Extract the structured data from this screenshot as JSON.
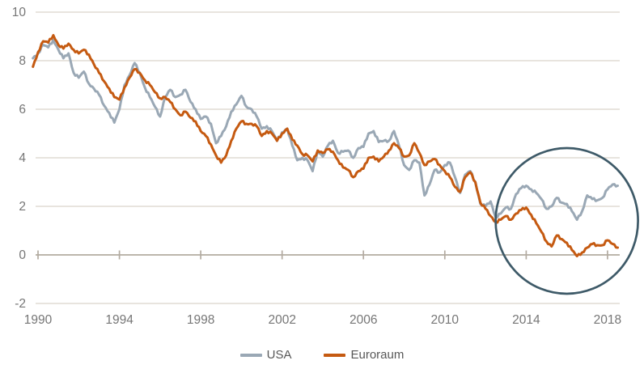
{
  "chart_data": {
    "type": "line",
    "title": "",
    "x_axis": {
      "label": "",
      "ticks": [
        1990,
        1994,
        1998,
        2002,
        2006,
        2010,
        2014,
        2018
      ],
      "range": [
        1989.88,
        2018.6
      ]
    },
    "y_axis": {
      "label": "",
      "ticks": [
        10,
        8,
        6,
        4,
        2,
        0,
        -2
      ],
      "range": [
        -2,
        10
      ]
    },
    "grid": "horizontal",
    "legend_position": "bottom-center",
    "series": [
      {
        "name": "USA",
        "color": "#9aa8b5",
        "x_start": 1989.75,
        "x_step": 0.25,
        "values": [
          8.1,
          8.3,
          8.65,
          8.55,
          8.85,
          8.45,
          8.1,
          8.3,
          7.5,
          7.3,
          7.55,
          7.05,
          6.85,
          6.6,
          6.15,
          5.85,
          5.45,
          6.0,
          7.0,
          7.4,
          7.9,
          7.5,
          6.9,
          6.5,
          6.1,
          5.7,
          6.5,
          6.8,
          6.5,
          6.6,
          6.8,
          6.3,
          6.0,
          5.6,
          5.7,
          5.4,
          4.6,
          4.9,
          5.3,
          5.9,
          6.2,
          6.55,
          6.1,
          6.0,
          5.7,
          5.2,
          5.3,
          5.1,
          4.7,
          5.05,
          5.2,
          4.5,
          3.9,
          4.0,
          3.9,
          3.45,
          4.3,
          4.05,
          4.5,
          4.7,
          4.2,
          4.25,
          4.3,
          4.0,
          4.4,
          4.45,
          5.0,
          5.1,
          4.65,
          4.7,
          4.7,
          5.1,
          4.5,
          3.7,
          3.5,
          3.9,
          3.8,
          2.45,
          2.9,
          3.5,
          3.4,
          3.7,
          3.8,
          3.2,
          2.55,
          3.3,
          3.45,
          3.0,
          2.1,
          2.0,
          2.2,
          1.55,
          1.7,
          1.95,
          1.9,
          2.5,
          2.75,
          2.85,
          2.7,
          2.55,
          2.3,
          1.9,
          2.0,
          2.35,
          2.15,
          2.1,
          1.8,
          1.45,
          1.8,
          2.45,
          2.3,
          2.25,
          2.35,
          2.7,
          2.9,
          2.85
        ]
      },
      {
        "name": "Euroraum",
        "color": "#c55a11",
        "x_start": 1989.75,
        "x_step": 0.25,
        "values": [
          7.75,
          8.35,
          8.8,
          8.75,
          9.05,
          8.65,
          8.5,
          8.7,
          8.45,
          8.3,
          8.45,
          8.25,
          7.85,
          7.5,
          7.15,
          6.85,
          6.5,
          6.4,
          6.9,
          7.3,
          7.65,
          7.5,
          7.2,
          7.0,
          6.7,
          6.45,
          6.5,
          6.3,
          6.0,
          5.75,
          5.9,
          5.65,
          5.5,
          5.1,
          4.9,
          4.55,
          4.1,
          3.8,
          4.1,
          4.7,
          5.2,
          5.5,
          5.4,
          5.4,
          5.3,
          4.9,
          5.1,
          5.0,
          4.7,
          5.0,
          5.2,
          4.75,
          4.5,
          4.15,
          4.1,
          3.85,
          4.3,
          4.2,
          4.35,
          4.25,
          3.9,
          3.6,
          3.5,
          3.2,
          3.45,
          3.55,
          4.0,
          4.05,
          3.85,
          4.05,
          4.3,
          4.6,
          4.4,
          4.05,
          4.1,
          4.6,
          4.2,
          3.7,
          3.85,
          3.95,
          3.7,
          3.45,
          3.2,
          2.8,
          2.6,
          3.2,
          3.4,
          3.0,
          2.15,
          1.9,
          1.6,
          1.35,
          1.45,
          1.6,
          1.45,
          1.7,
          1.85,
          1.95,
          1.65,
          1.3,
          0.95,
          0.55,
          0.35,
          0.8,
          0.65,
          0.5,
          0.2,
          -0.05,
          0.1,
          0.3,
          0.45,
          0.4,
          0.4,
          0.6,
          0.45,
          0.3
        ]
      }
    ],
    "annotation": {
      "shape": "circle",
      "center_year": 2016.0,
      "center_value": 1.4,
      "radius_years": 3.5,
      "radius_values": 3.0,
      "note": "circle highlighting divergence of USA and euro area yields from ~2013 to 2018"
    }
  },
  "colors": {
    "usa_line": "#9aa8b5",
    "euro_line": "#c55a11",
    "gridline": "#d9d3ca",
    "zero_axis": "#b3aba1",
    "tick_label": "#767676",
    "legend_text": "#575757",
    "annotation_circle": "#3e5a68",
    "background": "#ffffff"
  },
  "legend": {
    "entries": [
      "USA",
      "Euroraum"
    ]
  }
}
